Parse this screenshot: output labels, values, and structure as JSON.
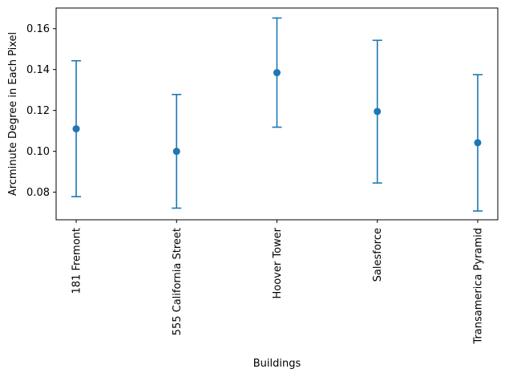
{
  "chart_data": {
    "type": "scatter",
    "title": "",
    "xlabel": "Buildings",
    "ylabel": "Arcminute Degree in Each Pixel",
    "categories": [
      "181 Fremont",
      "555 California Street",
      "Hoover Tower",
      "Salesforce",
      "Transamerica Pyramid"
    ],
    "series": [
      {
        "values": [
          0.111,
          0.1,
          0.1385,
          0.1195,
          0.1042
        ],
        "error_low": [
          0.0778,
          0.0722,
          0.1118,
          0.0845,
          0.0708
        ],
        "error_high": [
          0.1443,
          0.1278,
          0.1652,
          0.1543,
          0.1375
        ]
      }
    ],
    "ylim": [
      0.0665,
      0.1701
    ],
    "yticks": [
      0.08,
      0.1,
      0.12,
      0.14,
      0.16
    ],
    "ytick_labels": [
      "0.08",
      "0.10",
      "0.12",
      "0.14",
      "0.16"
    ],
    "grid": false,
    "colors": {
      "series": "#1f77b4",
      "axes": "#000000"
    }
  }
}
